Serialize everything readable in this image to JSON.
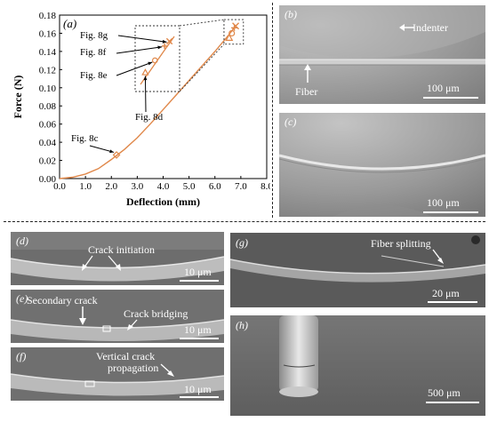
{
  "panel_a": {
    "label": "(a)",
    "annotations": [
      "Fig. 8g",
      "Fig. 8f",
      "Fig. 8e",
      "Fig. 8d",
      "Fig. 8c"
    ],
    "chart_data": {
      "type": "line",
      "xlabel": "Deflection (mm)",
      "ylabel": "Force (N)",
      "xlim": [
        0,
        8
      ],
      "ylim": [
        0,
        0.18
      ],
      "xticks": [
        "0.0",
        "1.0",
        "2.0",
        "3.0",
        "4.0",
        "5.0",
        "6.0",
        "7.0",
        "8.0"
      ],
      "yticks": [
        "0.00",
        "0.02",
        "0.04",
        "0.06",
        "0.08",
        "0.10",
        "0.12",
        "0.14",
        "0.16",
        "0.18"
      ],
      "x": [
        0,
        0.5,
        1.0,
        1.5,
        2.0,
        2.5,
        3.0,
        3.5,
        4.0,
        4.5,
        5.0,
        5.5,
        6.0,
        6.5,
        6.8
      ],
      "y": [
        0,
        0.0015,
        0.005,
        0.011,
        0.021,
        0.032,
        0.045,
        0.06,
        0.076,
        0.092,
        0.108,
        0.124,
        0.14,
        0.157,
        0.168
      ],
      "markers": [
        {
          "label": "Fig. 8c",
          "x": 2.2,
          "y": 0.026,
          "symbol": "diamond"
        },
        {
          "label": "Fig. 8d",
          "x": 6.55,
          "y": 0.155,
          "symbol": "triangle"
        },
        {
          "label": "Fig. 8e",
          "x": 6.65,
          "y": 0.16,
          "symbol": "circle"
        },
        {
          "label": "Fig. 8f",
          "x": 6.75,
          "y": 0.166,
          "symbol": "plus"
        },
        {
          "label": "Fig. 8g",
          "x": 6.8,
          "y": 0.168,
          "symbol": "cross"
        }
      ],
      "line_color": "#e0884a",
      "grid": false
    }
  },
  "panel_b": {
    "label": "(b)",
    "indenter": "Indenter",
    "fiber": "Fiber",
    "scale": "100 μm"
  },
  "panel_c": {
    "label": "(c)",
    "scale": "100 μm"
  },
  "panel_d": {
    "label": "(d)",
    "annotation": "Crack initiation",
    "scale": "10 μm"
  },
  "panel_e": {
    "label": "(e)",
    "annotation1": "Secondary crack",
    "annotation2": "Crack bridging",
    "scale": "10 μm"
  },
  "panel_f": {
    "label": "(f)",
    "annotation_line1": "Vertical crack",
    "annotation_line2": "propagation",
    "scale": "10 μm"
  },
  "panel_g": {
    "label": "(g)",
    "annotation": "Fiber splitting",
    "scale": "20 μm"
  },
  "panel_h": {
    "label": "(h)",
    "scale": "500 μm"
  }
}
